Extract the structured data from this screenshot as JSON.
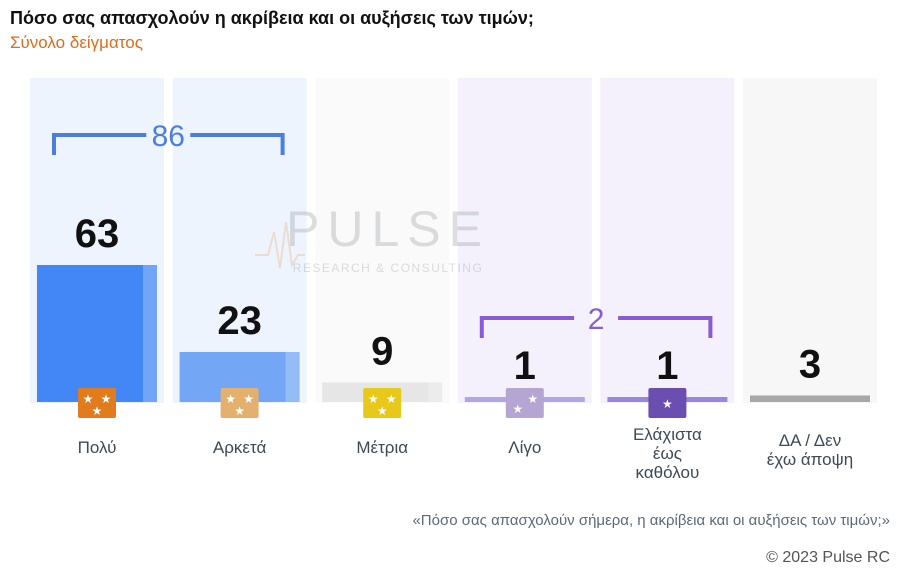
{
  "header": {
    "title": "Πόσο σας απασχολούν η ακρίβεια και οι αυξήσεις των τιμών;",
    "subtitle": "Σύνολο δείγματος"
  },
  "watermark": {
    "name": "PULSE",
    "tagline": "RESEARCH & CONSULTING"
  },
  "footer": {
    "note": "«Πόσο σας απασχολούν σήμερα, η ακρίβεια και οι αυξήσεις των τιμών;»",
    "copyright": "© 2023 Pulse RC"
  },
  "chart_data": {
    "type": "bar",
    "title": "Πόσο σας απασχολούν η ακρίβεια και οι αυξήσεις των τιμών;",
    "subtitle": "Σύνολο δείγματος",
    "categories": [
      [
        "Πολύ"
      ],
      [
        "Αρκετά"
      ],
      [
        "Μέτρια"
      ],
      [
        "Λίγο"
      ],
      [
        "Ελάχιστα",
        "έως",
        "καθόλου"
      ],
      [
        "ΔΑ / Δεν",
        "έχω άποψη"
      ]
    ],
    "values": [
      63,
      23,
      9,
      1,
      1,
      3
    ],
    "bar_colors": [
      "#4287f5",
      "#73a6f5",
      "#e6e6e6",
      "#b4a5e6",
      "#9a86dc",
      "#a8a8a8"
    ],
    "column_backgrounds": [
      "#eef4fe",
      "#eef4fe",
      "#fafafa",
      "#f4f1fc",
      "#f4f1fc",
      "#f7f7f7"
    ],
    "icon_colors": [
      "#e07b1e",
      "#e3b06e",
      "#e8c81a",
      "#b4a5d2",
      "#6a4fb0",
      null
    ],
    "icon_stars": [
      3,
      3,
      3,
      2,
      1,
      0
    ],
    "groups": [
      {
        "label": "86",
        "from": 0,
        "to": 1,
        "color": "#4a7fe0"
      },
      {
        "label": "2",
        "from": 3,
        "to": 4,
        "color": "#8a5ad8"
      }
    ],
    "ylim": [
      0,
      70
    ],
    "grid": false,
    "legend": "none"
  }
}
